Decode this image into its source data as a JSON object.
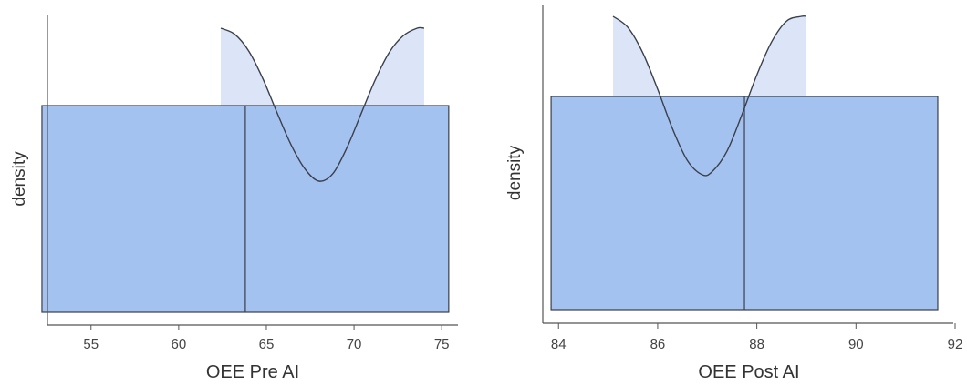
{
  "colors": {
    "box_fill": "#a4c2f0",
    "box_stroke": "#3a3f4a",
    "density_fill": "#dbe5f7",
    "density_stroke": "#3a3f4a",
    "axis": "#555555"
  },
  "chart_data": [
    {
      "type": "box+density",
      "xlabel": "OEE Pre AI",
      "ylabel": "density",
      "xlim": [
        51.5,
        76.5
      ],
      "x_ticks": [
        55,
        60,
        65,
        70,
        75
      ],
      "tick_labels": [
        "55",
        "60",
        "65",
        "70",
        "75"
      ],
      "box": {
        "min": 52.2,
        "median": 63.8,
        "max": 75.4
      },
      "density": {
        "x": [
          62.4,
          63.2,
          64.0,
          64.8,
          65.6,
          66.4,
          67.2,
          68.0,
          68.8,
          69.6,
          70.4,
          71.2,
          72.0,
          72.8,
          73.6,
          74.0
        ],
        "y": [
          1.0,
          0.96,
          0.85,
          0.67,
          0.45,
          0.24,
          0.08,
          0.0,
          0.05,
          0.22,
          0.44,
          0.66,
          0.84,
          0.95,
          1.0,
          1.0
        ]
      },
      "grid": false
    },
    {
      "type": "box+density",
      "xlabel": "OEE Post AI",
      "ylabel": "density",
      "xlim": [
        83.6,
        92.0
      ],
      "x_ticks": [
        84,
        86,
        88,
        90,
        92
      ],
      "tick_labels": [
        "84",
        "86",
        "88",
        "90",
        "92"
      ],
      "box": {
        "min": 83.85,
        "median": 87.75,
        "max": 91.65
      },
      "density": {
        "x": [
          85.1,
          85.4,
          85.7,
          86.0,
          86.3,
          86.6,
          86.9,
          87.1,
          87.4,
          87.7,
          88.0,
          88.3,
          88.6,
          88.9,
          89.0
        ],
        "y": [
          1.0,
          0.93,
          0.77,
          0.54,
          0.29,
          0.09,
          0.0,
          0.02,
          0.15,
          0.38,
          0.63,
          0.84,
          0.97,
          1.0,
          1.0
        ]
      },
      "grid": false
    }
  ]
}
